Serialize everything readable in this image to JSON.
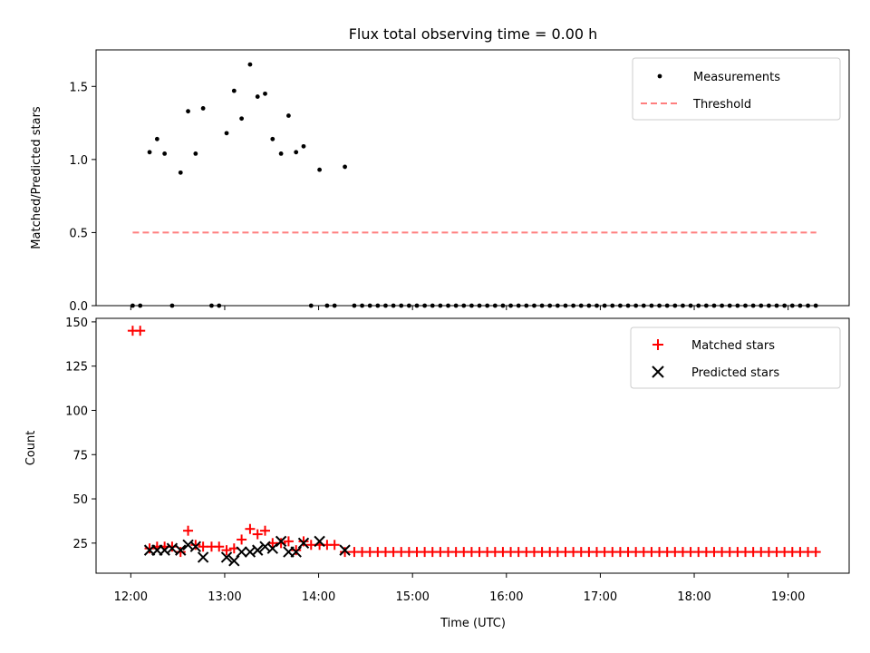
{
  "figure_title": "Flux total observing time = 0.00 h",
  "x_ticks": [
    "12:00",
    "13:00",
    "14:00",
    "15:00",
    "16:00",
    "17:00",
    "18:00",
    "19:00"
  ],
  "xlabel": "Time (UTC)",
  "colors": {
    "measurement": "#000000",
    "threshold": "#ff7f7f",
    "matched": "#ff0000",
    "predicted": "#000000"
  },
  "chart_data": [
    {
      "type": "scatter",
      "ylabel": "Matched/Predicted stars",
      "xlim": [
        11.63,
        19.65
      ],
      "ylim": [
        0,
        1.75
      ],
      "y_ticks": [
        "0.0",
        "0.5",
        "1.0",
        "1.5"
      ],
      "legend": {
        "position": "top-right",
        "items": [
          "Measurements",
          "Threshold"
        ]
      },
      "series": [
        {
          "name": "Measurements",
          "points": [
            [
              12.02,
              0
            ],
            [
              12.1,
              0
            ],
            [
              12.2,
              1.05
            ],
            [
              12.28,
              1.14
            ],
            [
              12.36,
              1.04
            ],
            [
              12.44,
              0
            ],
            [
              12.53,
              0.91
            ],
            [
              12.61,
              1.33
            ],
            [
              12.69,
              1.04
            ],
            [
              12.77,
              1.35
            ],
            [
              12.86,
              0
            ],
            [
              12.94,
              0
            ],
            [
              13.02,
              1.18
            ],
            [
              13.1,
              1.47
            ],
            [
              13.18,
              1.28
            ],
            [
              13.27,
              1.65
            ],
            [
              13.35,
              1.43
            ],
            [
              13.43,
              1.45
            ],
            [
              13.51,
              1.14
            ],
            [
              13.6,
              1.04
            ],
            [
              13.68,
              1.3
            ],
            [
              13.76,
              1.05
            ],
            [
              13.84,
              1.09
            ],
            [
              13.92,
              0
            ],
            [
              14.01,
              0.93
            ],
            [
              14.09,
              0
            ],
            [
              14.17,
              0
            ],
            [
              14.28,
              0.95
            ]
          ],
          "zero_points_from": 14.38,
          "zero_points_step": 0.0833,
          "zero_points_to": 19.3
        },
        {
          "name": "Threshold",
          "line": [
            [
              12.02,
              0.5
            ],
            [
              19.3,
              0.5
            ]
          ]
        }
      ]
    },
    {
      "type": "scatter",
      "ylabel": "Count",
      "xlim": [
        11.63,
        19.65
      ],
      "ylim": [
        8,
        152
      ],
      "y_ticks": [
        "25",
        "50",
        "75",
        "100",
        "125",
        "150"
      ],
      "legend": {
        "position": "top-right",
        "items": [
          "Matched stars",
          "Predicted stars"
        ]
      },
      "series": [
        {
          "name": "Matched stars",
          "points": [
            [
              12.02,
              145
            ],
            [
              12.1,
              145
            ],
            [
              12.2,
              22
            ],
            [
              12.28,
              23
            ],
            [
              12.36,
              23
            ],
            [
              12.44,
              23
            ],
            [
              12.53,
              20
            ],
            [
              12.61,
              32
            ],
            [
              12.69,
              24
            ],
            [
              12.77,
              23
            ],
            [
              12.86,
              23
            ],
            [
              12.94,
              23
            ],
            [
              13.02,
              21
            ],
            [
              13.1,
              22
            ],
            [
              13.18,
              27
            ],
            [
              13.27,
              33
            ],
            [
              13.35,
              30
            ],
            [
              13.43,
              32
            ],
            [
              13.51,
              25
            ],
            [
              13.6,
              25
            ],
            [
              13.68,
              26
            ],
            [
              13.76,
              21
            ],
            [
              13.84,
              26
            ],
            [
              13.92,
              24
            ],
            [
              14.01,
              24
            ],
            [
              14.09,
              24
            ],
            [
              14.17,
              24
            ],
            [
              14.28,
              20
            ]
          ],
          "constant_from": 14.38,
          "constant_step": 0.0833,
          "constant_to": 19.3,
          "constant_value": 20
        },
        {
          "name": "Predicted stars",
          "points": [
            [
              12.2,
              21
            ],
            [
              12.28,
              21
            ],
            [
              12.36,
              21
            ],
            [
              12.44,
              22
            ],
            [
              12.53,
              21
            ],
            [
              12.61,
              24
            ],
            [
              12.69,
              23
            ],
            [
              12.77,
              17
            ],
            [
              13.02,
              17
            ],
            [
              13.1,
              15
            ],
            [
              13.18,
              20
            ],
            [
              13.27,
              20
            ],
            [
              13.35,
              21
            ],
            [
              13.43,
              23
            ],
            [
              13.51,
              22
            ],
            [
              13.6,
              26
            ],
            [
              13.68,
              20
            ],
            [
              13.76,
              20
            ],
            [
              13.84,
              25
            ],
            [
              14.01,
              26
            ],
            [
              14.28,
              21
            ]
          ]
        }
      ]
    }
  ]
}
